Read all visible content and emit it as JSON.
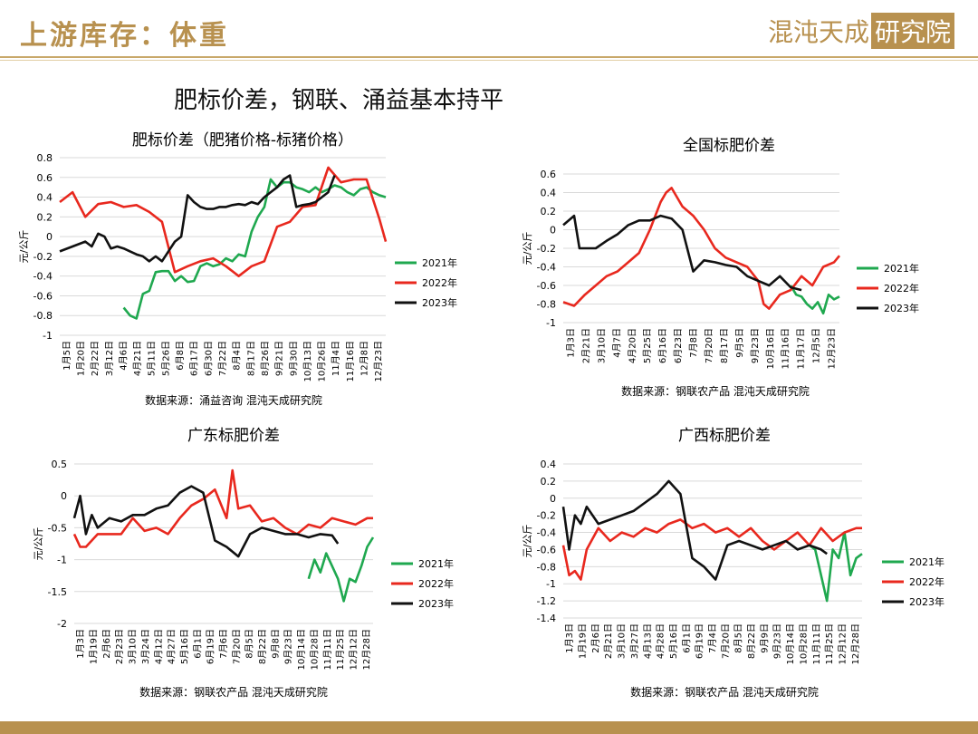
{
  "header": {
    "title": "上游库存：体重",
    "brand_text": "混沌天成",
    "brand_box": "研究院"
  },
  "headline": "肥标价差，钢联、涌益基本持平",
  "colors": {
    "2021年": "#1fa84f",
    "2022年": "#e8281e",
    "2023年": "#111111",
    "accent": "#b8914f"
  },
  "chart_data": [
    {
      "type": "line",
      "title": "肥标价差（肥猪价格-标猪价格）",
      "ylabel": "元/公斤",
      "source": "数据来源：涌益咨询 混沌天成研究院",
      "ylim": [
        -1,
        0.8
      ],
      "yticks": [
        "0.8",
        "0.6",
        "0.4",
        "0.2",
        "0",
        "-0.2",
        "-0.4",
        "-0.6",
        "-0.8",
        "-1"
      ],
      "xticks": [
        "1月5日",
        "1月20日",
        "2月22日",
        "3月12日",
        "4月6日",
        "4月21日",
        "5月11日",
        "5月26日",
        "6月8日",
        "6月17日",
        "6月30日",
        "7月22日",
        "8月4日",
        "8月17日",
        "8月26日",
        "9月21日",
        "9月30日",
        "10月13日",
        "10月26日",
        "11月4日",
        "11月16日",
        "12月8日",
        "12月23日"
      ],
      "series": [
        {
          "name": "2021年",
          "x": [
            10,
            11,
            12,
            13,
            14,
            15,
            16,
            17,
            18,
            19,
            20,
            21,
            22,
            23,
            24,
            25,
            26,
            27,
            28,
            29,
            30,
            31,
            32,
            33,
            34,
            35,
            36,
            37,
            38,
            39,
            40,
            41,
            42,
            43,
            44,
            45,
            46,
            47,
            48,
            49,
            50,
            51
          ],
          "y": [
            -0.72,
            -0.8,
            -0.83,
            -0.58,
            -0.55,
            -0.36,
            -0.35,
            -0.35,
            -0.45,
            -0.4,
            -0.46,
            -0.45,
            -0.3,
            -0.27,
            -0.3,
            -0.28,
            -0.22,
            -0.25,
            -0.18,
            -0.2,
            0.05,
            0.2,
            0.3,
            0.58,
            0.5,
            0.55,
            0.55,
            0.5,
            0.48,
            0.45,
            0.5,
            0.45,
            0.48,
            0.52,
            0.5,
            0.45,
            0.42,
            0.48,
            0.5,
            0.45,
            0.42,
            0.4
          ]
        },
        {
          "name": "2022年",
          "x": [
            0,
            2,
            4,
            6,
            8,
            10,
            12,
            14,
            16,
            18,
            20,
            22,
            24,
            26,
            28,
            30,
            32,
            34,
            36,
            38,
            40,
            42,
            44,
            46,
            48,
            50,
            51
          ],
          "y": [
            0.35,
            0.45,
            0.2,
            0.33,
            0.35,
            0.3,
            0.32,
            0.25,
            0.15,
            -0.36,
            -0.3,
            -0.25,
            -0.22,
            -0.3,
            -0.4,
            -0.3,
            -0.25,
            0.1,
            0.15,
            0.3,
            0.32,
            0.7,
            0.55,
            0.58,
            0.58,
            0.18,
            -0.05
          ]
        },
        {
          "name": "2023年",
          "x": [
            0,
            2,
            4,
            5,
            6,
            7,
            8,
            9,
            10,
            11,
            12,
            13,
            14,
            15,
            16,
            17,
            18,
            19,
            20,
            21,
            22,
            23,
            24,
            25,
            26,
            27,
            28,
            29,
            30,
            31,
            32,
            33,
            34,
            35,
            36,
            37,
            38,
            39,
            40,
            41,
            42,
            43
          ],
          "y": [
            -0.15,
            -0.1,
            -0.05,
            -0.1,
            0.03,
            0.0,
            -0.12,
            -0.1,
            -0.12,
            -0.15,
            -0.18,
            -0.2,
            -0.25,
            -0.2,
            -0.25,
            -0.15,
            -0.05,
            0.0,
            0.42,
            0.35,
            0.3,
            0.28,
            0.28,
            0.3,
            0.3,
            0.32,
            0.33,
            0.32,
            0.35,
            0.33,
            0.4,
            0.45,
            0.5,
            0.58,
            0.62,
            0.3,
            0.32,
            0.33,
            0.35,
            0.4,
            0.45,
            0.62
          ]
        }
      ]
    },
    {
      "type": "line",
      "title": "全国标肥价差",
      "ylabel": "元/公斤",
      "source": "数据来源：钢联农产品 混沌天成研究院",
      "ylim": [
        -1,
        0.6
      ],
      "yticks": [
        "0.6",
        "0.4",
        "0.2",
        "0",
        "-0.2",
        "-0.4",
        "-0.6",
        "-0.8",
        "-1"
      ],
      "xticks": [
        "1月3日",
        "2月21日",
        "3月10日",
        "4月7日",
        "4月20日",
        "5月25日",
        "6月16日",
        "6月23日",
        "7月8日",
        "7月20日",
        "8月17日",
        "9月5日",
        "9月23日",
        "10月16日",
        "11月16日",
        "11月17日",
        "12月5日",
        "12月23日"
      ],
      "series": [
        {
          "name": "2021年",
          "x": [
            42,
            43,
            44,
            45,
            46,
            47,
            48,
            49,
            50,
            51
          ],
          "y": [
            -0.6,
            -0.7,
            -0.72,
            -0.8,
            -0.85,
            -0.78,
            -0.9,
            -0.7,
            -0.75,
            -0.72
          ]
        },
        {
          "name": "2022年",
          "x": [
            0,
            2,
            4,
            6,
            8,
            10,
            12,
            14,
            16,
            18,
            19,
            20,
            21,
            22,
            24,
            26,
            28,
            30,
            32,
            34,
            36,
            37,
            38,
            40,
            42,
            44,
            46,
            48,
            50,
            51
          ],
          "y": [
            -0.78,
            -0.82,
            -0.7,
            -0.6,
            -0.5,
            -0.45,
            -0.35,
            -0.25,
            0.0,
            0.3,
            0.4,
            0.45,
            0.35,
            0.25,
            0.15,
            0.0,
            -0.2,
            -0.3,
            -0.35,
            -0.4,
            -0.55,
            -0.8,
            -0.85,
            -0.7,
            -0.65,
            -0.5,
            -0.6,
            -0.4,
            -0.35,
            -0.28
          ]
        },
        {
          "name": "2023年",
          "x": [
            0,
            1,
            2,
            3,
            4,
            6,
            8,
            10,
            12,
            14,
            16,
            18,
            20,
            22,
            24,
            26,
            28,
            30,
            32,
            34,
            36,
            38,
            40,
            42,
            44
          ],
          "y": [
            0.05,
            0.1,
            0.15,
            -0.2,
            -0.2,
            -0.2,
            -0.12,
            -0.05,
            0.05,
            0.1,
            0.1,
            0.15,
            0.12,
            0.0,
            -0.45,
            -0.33,
            -0.35,
            -0.38,
            -0.4,
            -0.5,
            -0.55,
            -0.6,
            -0.5,
            -0.62,
            -0.65
          ]
        }
      ]
    },
    {
      "type": "line",
      "title": "广东标肥价差",
      "ylabel": "元/公斤",
      "source": "数据来源：钢联农产品 混沌天成研究院",
      "ylim": [
        -2,
        0.5
      ],
      "yticks": [
        "0.5",
        "0",
        "-0.5",
        "-1",
        "-1.5",
        "-2"
      ],
      "xticks": [
        "1月3日",
        "1月19日",
        "2月6日",
        "2月23日",
        "3月10日",
        "3月24日",
        "4月12日",
        "4月27日",
        "5月16日",
        "6月1日",
        "6月19日",
        "7月6日",
        "7月20日",
        "8月5日",
        "8月22日",
        "9月8日",
        "9月23日",
        "10月14日",
        "10月28日",
        "11月11日",
        "11月25日",
        "12月12日",
        "12月28日"
      ],
      "series": [
        {
          "name": "2021年",
          "x": [
            40,
            41,
            42,
            43,
            44,
            45,
            46,
            47,
            48,
            49,
            50,
            51
          ],
          "y": [
            -1.3,
            -1.0,
            -1.2,
            -0.9,
            -1.1,
            -1.3,
            -1.65,
            -1.3,
            -1.35,
            -1.1,
            -0.8,
            -0.65
          ]
        },
        {
          "name": "2022年",
          "x": [
            0,
            1,
            2,
            4,
            6,
            8,
            10,
            12,
            14,
            16,
            18,
            20,
            22,
            24,
            26,
            27,
            28,
            30,
            32,
            34,
            36,
            38,
            40,
            42,
            44,
            46,
            48,
            50,
            51
          ],
          "y": [
            -0.6,
            -0.8,
            -0.8,
            -0.6,
            -0.6,
            -0.6,
            -0.35,
            -0.55,
            -0.5,
            -0.6,
            -0.35,
            -0.15,
            -0.05,
            0.1,
            -0.35,
            0.4,
            -0.2,
            -0.15,
            -0.4,
            -0.35,
            -0.5,
            -0.6,
            -0.45,
            -0.5,
            -0.35,
            -0.4,
            -0.45,
            -0.35,
            -0.35
          ]
        },
        {
          "name": "2023年",
          "x": [
            0,
            1,
            2,
            3,
            4,
            6,
            8,
            10,
            12,
            14,
            16,
            18,
            20,
            22,
            24,
            26,
            28,
            30,
            32,
            34,
            36,
            38,
            40,
            42,
            44,
            45
          ],
          "y": [
            -0.35,
            0.0,
            -0.6,
            -0.3,
            -0.5,
            -0.35,
            -0.4,
            -0.3,
            -0.3,
            -0.2,
            -0.15,
            0.05,
            0.15,
            0.05,
            -0.7,
            -0.8,
            -0.95,
            -0.6,
            -0.5,
            -0.55,
            -0.6,
            -0.6,
            -0.65,
            -0.6,
            -0.62,
            -0.75
          ]
        }
      ]
    },
    {
      "type": "line",
      "title": "广西标肥价差",
      "ylabel": "元/公斤",
      "source": "数据来源：钢联农产品 混沌天成研究院",
      "ylim": [
        -1.4,
        0.4
      ],
      "yticks": [
        "0.4",
        "0.2",
        "0",
        "-0.2",
        "-0.4",
        "-0.6",
        "-0.8",
        "-1",
        "-1.2",
        "-1.4"
      ],
      "xticks": [
        "1月3日",
        "1月19日",
        "2月6日",
        "2月21日",
        "3月10日",
        "3月27日",
        "4月13日",
        "4月28日",
        "5月16日",
        "6月1日",
        "6月19日",
        "7月4日",
        "7月20日",
        "8月5日",
        "8月22日",
        "9月9日",
        "9月23日",
        "10月14日",
        "10月28日",
        "11月11日",
        "11月25日",
        "12月12日",
        "12月28日"
      ],
      "series": [
        {
          "name": "2021年",
          "x": [
            42,
            43,
            44,
            45,
            46,
            47,
            48,
            49,
            50,
            51
          ],
          "y": [
            -0.55,
            -0.6,
            -0.9,
            -1.2,
            -0.6,
            -0.7,
            -0.4,
            -0.9,
            -0.7,
            -0.65
          ]
        },
        {
          "name": "2022年",
          "x": [
            0,
            1,
            2,
            3,
            4,
            6,
            8,
            10,
            12,
            14,
            16,
            18,
            20,
            22,
            24,
            26,
            28,
            30,
            32,
            34,
            36,
            38,
            40,
            42,
            44,
            46,
            48,
            50,
            51
          ],
          "y": [
            -0.55,
            -0.9,
            -0.85,
            -0.95,
            -0.6,
            -0.35,
            -0.5,
            -0.4,
            -0.45,
            -0.35,
            -0.4,
            -0.3,
            -0.25,
            -0.35,
            -0.3,
            -0.4,
            -0.35,
            -0.45,
            -0.35,
            -0.5,
            -0.6,
            -0.5,
            -0.4,
            -0.55,
            -0.35,
            -0.5,
            -0.4,
            -0.35,
            -0.35
          ]
        },
        {
          "name": "2023年",
          "x": [
            0,
            1,
            2,
            3,
            4,
            6,
            8,
            10,
            12,
            14,
            16,
            18,
            20,
            22,
            24,
            26,
            28,
            30,
            32,
            34,
            36,
            38,
            40,
            42,
            44,
            45
          ],
          "y": [
            -0.1,
            -0.6,
            -0.2,
            -0.3,
            -0.1,
            -0.3,
            -0.25,
            -0.2,
            -0.15,
            -0.05,
            0.05,
            0.2,
            0.05,
            -0.7,
            -0.8,
            -0.95,
            -0.55,
            -0.5,
            -0.55,
            -0.6,
            -0.55,
            -0.5,
            -0.6,
            -0.55,
            -0.6,
            -0.65
          ]
        }
      ]
    }
  ]
}
